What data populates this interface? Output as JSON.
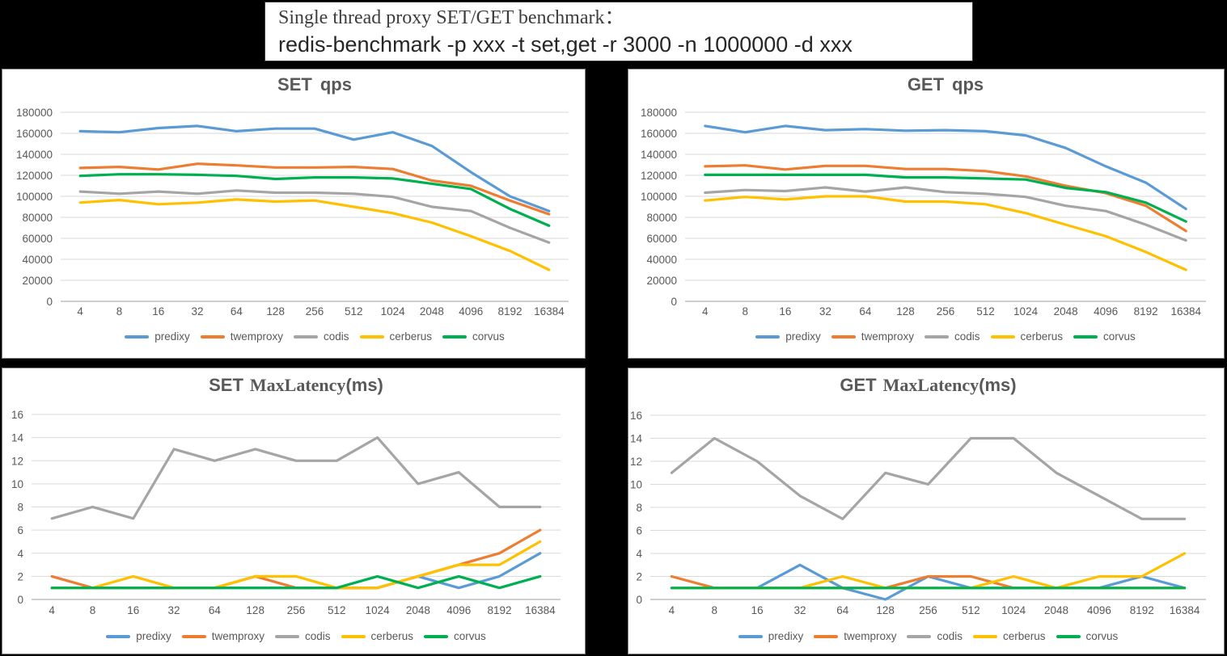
{
  "page": {
    "background": "#000000"
  },
  "title_box": {
    "line1": "Single thread proxy SET/GET benchmark：",
    "line2": "redis-benchmark -p xxx -t set,get -r 3000 -n 1000000 -d xxx"
  },
  "palette": {
    "predixy": "#5B9BD5",
    "twemproxy": "#ED7D31",
    "codis": "#A5A5A5",
    "cerberus": "#FFC000",
    "corvus": "#00B050",
    "gridline": "#D9D9D9",
    "axis_line": "#BFBFBF",
    "tick_label": "#595959",
    "chart_title": "#595959"
  },
  "legend": {
    "labels": [
      "predixy",
      "twemproxy",
      "codis",
      "cerberus",
      "corvus"
    ]
  },
  "chart_data": [
    {
      "id": "set-qps",
      "type": "line",
      "title": {
        "prefix": "SET",
        "name": "qps",
        "suffix": ""
      },
      "categories": [
        "4",
        "8",
        "16",
        "32",
        "64",
        "128",
        "256",
        "512",
        "1024",
        "2048",
        "4096",
        "8192",
        "16384"
      ],
      "ylim": [
        0,
        180000
      ],
      "ystep": 20000,
      "grid": true,
      "legend_position": "bottom",
      "series": [
        {
          "name": "predixy",
          "color": "#5B9BD5",
          "values": [
            162000,
            161000,
            165000,
            167000,
            162000,
            164500,
            164500,
            154000,
            161000,
            148000,
            123000,
            100000,
            86000
          ]
        },
        {
          "name": "twemproxy",
          "color": "#ED7D31",
          "values": [
            127000,
            128000,
            125500,
            131000,
            129500,
            127500,
            127500,
            128000,
            126000,
            115000,
            110000,
            96000,
            83000
          ]
        },
        {
          "name": "codis",
          "color": "#A5A5A5",
          "values": [
            104500,
            102500,
            104500,
            102500,
            105500,
            103500,
            103500,
            102500,
            99500,
            90000,
            86000,
            70000,
            56000
          ]
        },
        {
          "name": "cerberus",
          "color": "#FFC000",
          "values": [
            94000,
            96500,
            92500,
            94000,
            97000,
            95000,
            96000,
            90000,
            84000,
            75000,
            62000,
            48000,
            30000
          ]
        },
        {
          "name": "corvus",
          "color": "#00B050",
          "values": [
            119500,
            121000,
            121000,
            120500,
            119500,
            116500,
            118000,
            118000,
            117000,
            112000,
            107000,
            88000,
            72000
          ]
        }
      ]
    },
    {
      "id": "get-qps",
      "type": "line",
      "title": {
        "prefix": "GET",
        "name": "qps",
        "suffix": ""
      },
      "categories": [
        "4",
        "8",
        "16",
        "32",
        "64",
        "128",
        "256",
        "512",
        "1024",
        "2048",
        "4096",
        "8192",
        "16384"
      ],
      "ylim": [
        0,
        180000
      ],
      "ystep": 20000,
      "grid": true,
      "legend_position": "bottom",
      "series": [
        {
          "name": "predixy",
          "color": "#5B9BD5",
          "values": [
            167000,
            161000,
            167000,
            163000,
            164000,
            162500,
            163000,
            162000,
            158000,
            146000,
            128500,
            113000,
            88000
          ]
        },
        {
          "name": "twemproxy",
          "color": "#ED7D31",
          "values": [
            128500,
            129500,
            125500,
            129000,
            129000,
            126000,
            126000,
            124000,
            119000,
            110000,
            103000,
            91000,
            67000
          ]
        },
        {
          "name": "codis",
          "color": "#A5A5A5",
          "values": [
            103500,
            106000,
            105000,
            108500,
            104500,
            108500,
            104000,
            102500,
            99500,
            91000,
            86000,
            73000,
            58000
          ]
        },
        {
          "name": "cerberus",
          "color": "#FFC000",
          "values": [
            96000,
            99500,
            97000,
            100000,
            100000,
            95000,
            95000,
            92500,
            84000,
            73000,
            62000,
            47000,
            30000
          ]
        },
        {
          "name": "corvus",
          "color": "#00B050",
          "values": [
            120500,
            120500,
            120500,
            120500,
            120500,
            118000,
            118000,
            117000,
            116000,
            108000,
            104000,
            94000,
            76000
          ]
        }
      ]
    },
    {
      "id": "set-lat",
      "type": "line",
      "title": {
        "prefix": "SET",
        "name": "MaxLatency",
        "suffix": "(ms)"
      },
      "categories": [
        "4",
        "8",
        "16",
        "32",
        "64",
        "128",
        "256",
        "512",
        "1024",
        "2048",
        "4096",
        "8192",
        "16384"
      ],
      "ylim": [
        0,
        16
      ],
      "ystep": 2,
      "grid": true,
      "legend_position": "bottom",
      "series": [
        {
          "name": "predixy",
          "color": "#5B9BD5",
          "values": [
            1,
            1,
            1,
            1,
            1,
            1,
            1,
            1,
            1,
            2,
            1,
            2,
            4
          ]
        },
        {
          "name": "twemproxy",
          "color": "#ED7D31",
          "values": [
            2,
            1,
            1,
            1,
            1,
            2,
            1,
            1,
            1,
            2,
            3,
            4,
            6
          ]
        },
        {
          "name": "codis",
          "color": "#A5A5A5",
          "values": [
            7,
            8,
            7,
            13,
            12,
            13,
            12,
            12,
            14,
            10,
            11,
            8,
            8
          ]
        },
        {
          "name": "cerberus",
          "color": "#FFC000",
          "values": [
            1,
            1,
            2,
            1,
            1,
            2,
            2,
            1,
            1,
            2,
            3,
            3,
            5
          ]
        },
        {
          "name": "corvus",
          "color": "#00B050",
          "values": [
            1,
            1,
            1,
            1,
            1,
            1,
            1,
            1,
            2,
            1,
            2,
            1,
            2
          ]
        }
      ]
    },
    {
      "id": "get-lat",
      "type": "line",
      "title": {
        "prefix": "GET",
        "name": "MaxLatency",
        "suffix": "(ms)"
      },
      "categories": [
        "4",
        "8",
        "16",
        "32",
        "64",
        "128",
        "256",
        "512",
        "1024",
        "2048",
        "4096",
        "8192",
        "16384"
      ],
      "ylim": [
        0,
        16
      ],
      "ystep": 2,
      "grid": true,
      "legend_position": "bottom",
      "series": [
        {
          "name": "predixy",
          "color": "#5B9BD5",
          "values": [
            1,
            1,
            1,
            3,
            1,
            0,
            2,
            1,
            1,
            1,
            1,
            2,
            1
          ]
        },
        {
          "name": "twemproxy",
          "color": "#ED7D31",
          "values": [
            2,
            1,
            1,
            1,
            1,
            1,
            2,
            2,
            1,
            1,
            1,
            1,
            1
          ]
        },
        {
          "name": "codis",
          "color": "#A5A5A5",
          "values": [
            11,
            14,
            12,
            9,
            7,
            11,
            10,
            14,
            14,
            11,
            9,
            7,
            7
          ]
        },
        {
          "name": "cerberus",
          "color": "#FFC000",
          "values": [
            1,
            1,
            1,
            1,
            2,
            1,
            1,
            1,
            2,
            1,
            2,
            2,
            4
          ]
        },
        {
          "name": "corvus",
          "color": "#00B050",
          "values": [
            1,
            1,
            1,
            1,
            1,
            1,
            1,
            1,
            1,
            1,
            1,
            1,
            1
          ]
        }
      ]
    }
  ]
}
